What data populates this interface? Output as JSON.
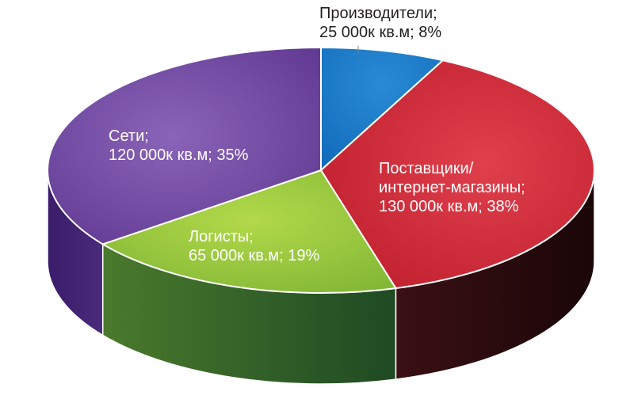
{
  "chart_data": {
    "type": "pie",
    "style": "3d",
    "title": "",
    "slices": [
      {
        "name": "Производители",
        "value": 25000,
        "value_label": "25 000к кв.м",
        "percent": 8,
        "label_line1": "Производители;",
        "label_line2": "25 000к кв.м; 8%",
        "color": "#1a76c4",
        "side_color": "#0d3f6d",
        "text_color": "#231f20"
      },
      {
        "name": "Поставщики/ интернет-магазины",
        "value": 130000,
        "value_label": "130 000к кв.м",
        "percent": 38,
        "label_line1": "Поставщики/",
        "label_line2": "интернет-магазины;",
        "label_line3": "130 000к кв.м; 38%",
        "color": "#d42b3b",
        "side_color": "#2a0e10",
        "text_color": "#ffffff"
      },
      {
        "name": "Логисты",
        "value": 65000,
        "value_label": "65 000к кв.м",
        "percent": 19,
        "label_line1": "Логисты;",
        "label_line2": "65 000к кв.м; 19%",
        "color": "#8fc33a",
        "side_color": "#2f5a2a",
        "text_color": "#ffffff"
      },
      {
        "name": "Сети",
        "value": 120000,
        "value_label": "120 000к кв.м",
        "percent": 35,
        "label_line1": "Сети;",
        "label_line2": "120 000к кв.м; 35%",
        "color": "#6a3e97",
        "side_color": "#3c1f6a",
        "text_color": "#ffffff"
      }
    ]
  }
}
